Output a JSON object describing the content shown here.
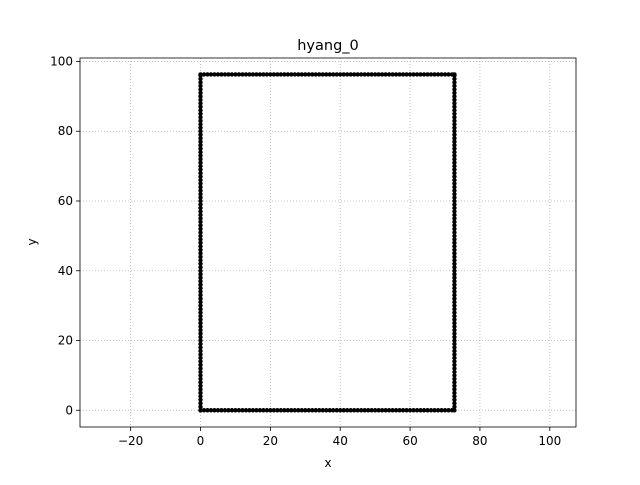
{
  "chart_data": {
    "type": "scatter",
    "title": "hyang_0",
    "xlabel": "x",
    "ylabel": "y",
    "xlim": [
      -34.5,
      107.5
    ],
    "ylim": [
      -4.8,
      101
    ],
    "xticks": [
      -20,
      0,
      20,
      40,
      60,
      80,
      100
    ],
    "yticks": [
      0,
      20,
      40,
      60,
      80,
      100
    ],
    "grid": true,
    "grid_style": "dotted",
    "marker_color": "#000000",
    "series": [
      {
        "shape": "rectangle-outline",
        "x_min": 0,
        "x_max": 72.7,
        "y_min": 0,
        "y_max": 96.3,
        "point_spacing": 1
      }
    ]
  }
}
